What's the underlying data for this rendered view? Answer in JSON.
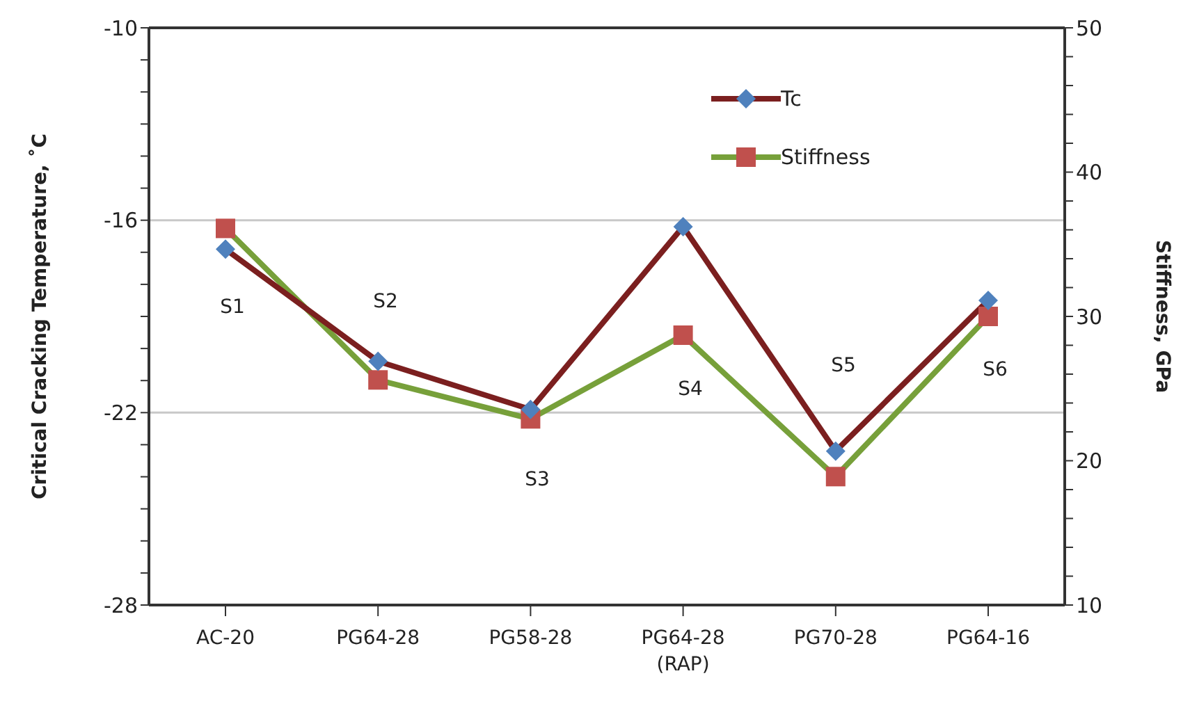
{
  "chart_data": {
    "type": "line",
    "categories": [
      "AC-20",
      "PG64-28",
      "PG58-28",
      "PG64-28\n(RAP)",
      "PG70-28",
      "PG64-16"
    ],
    "ylabel": "Critical Cracking Temperature, ˚C",
    "y2label": "Stiffness, GPa",
    "ylim": [
      -28,
      -10
    ],
    "yticks": [
      -10,
      {
        "value": -11,
        "label": null
      },
      {
        "value": -12,
        "label": null
      },
      {
        "value": -13,
        "label": null
      },
      {
        "value": -14,
        "label": null
      },
      {
        "value": -15,
        "label": null
      },
      -16,
      {
        "value": -17,
        "label": null
      },
      {
        "value": -18,
        "label": null
      },
      {
        "value": -19,
        "label": null
      },
      {
        "value": -20,
        "label": null
      },
      {
        "value": -21,
        "label": null
      },
      -22,
      {
        "value": -23,
        "label": null
      },
      {
        "value": -24,
        "label": null
      },
      {
        "value": -25,
        "label": null
      },
      {
        "value": -26,
        "label": null
      },
      {
        "value": -27,
        "label": null
      },
      -28
    ],
    "y2lim": [
      10,
      50
    ],
    "y2ticks": [
      10,
      {
        "value": 12,
        "label": null
      },
      {
        "value": 14,
        "label": null
      },
      {
        "value": 16,
        "label": null
      },
      {
        "value": 18,
        "label": null
      },
      20,
      {
        "value": 22,
        "label": null
      },
      {
        "value": 24,
        "label": null
      },
      {
        "value": 26,
        "label": null
      },
      {
        "value": 28,
        "label": null
      },
      30,
      {
        "value": 32,
        "label": null
      },
      {
        "value": 34,
        "label": null
      },
      {
        "value": 36,
        "label": null
      },
      {
        "value": 38,
        "label": null
      },
      40,
      {
        "value": 42,
        "label": null
      },
      {
        "value": 44,
        "label": null
      },
      {
        "value": 46,
        "label": null
      },
      {
        "value": 48,
        "label": null
      },
      50
    ],
    "grid": "y",
    "legend": "top right",
    "line_style": "solid",
    "series": [
      {
        "name": "Tc",
        "color": "#7b1f1f",
        "colors": [
          "#4f81bd",
          "#4f81bd",
          "#4f81bd",
          "#4f81bd",
          "#4f81bd",
          "#4f81bd"
        ],
        "marker": "diamond",
        "values": [
          -16.9,
          -20.4,
          -21.9,
          -16.2,
          -23.2,
          -18.5
        ]
      },
      {
        "name": "Stiffness",
        "color": "#77a03a",
        "colors": [
          "#c0504d",
          "#c0504d",
          "#c0504d",
          "#c0504d",
          "#c0504d",
          "#c0504d"
        ],
        "marker": "square",
        "axis": "y2",
        "values": [
          36.1,
          25.6,
          22.9,
          28.7,
          18.9,
          30.0
        ]
      }
    ],
    "annotations": [
      "S1",
      "S2",
      "S3",
      "S4",
      "S5",
      "S6"
    ]
  }
}
